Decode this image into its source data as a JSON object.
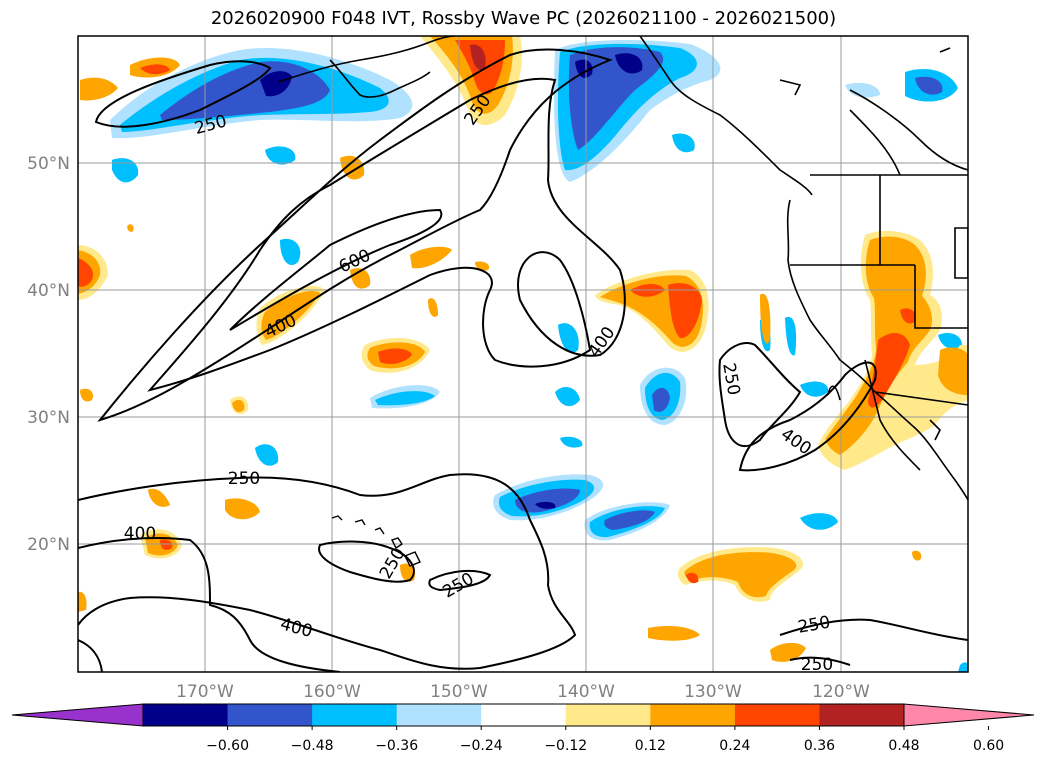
{
  "title": "2026020900 F048 IVT, Rossby Wave PC (2026021100 - 2026021500)",
  "map": {
    "lat_labels": [
      "50°N",
      "40°N",
      "30°N",
      "20°N"
    ],
    "lon_labels": [
      "170°W",
      "160°W",
      "150°W",
      "140°W",
      "130°W",
      "120°W"
    ],
    "contour_labels": [
      "250",
      "250",
      "600",
      "400",
      "250",
      "400",
      "250",
      "400",
      "250",
      "400",
      "250",
      "250",
      "400",
      "250",
      "250"
    ]
  },
  "colorbar": {
    "colors": [
      "#9932cc",
      "#00008b",
      "#3355cc",
      "#00bfff",
      "#b0e2ff",
      "#ffffff",
      "#ffe98a",
      "#ffa500",
      "#ff4500",
      "#b22222",
      "#ff88aa"
    ],
    "tick_labels": [
      "−0.60",
      "−0.48",
      "−0.36",
      "−0.24",
      "−0.12",
      "0.12",
      "0.24",
      "0.36",
      "0.48",
      "0.60"
    ]
  }
}
